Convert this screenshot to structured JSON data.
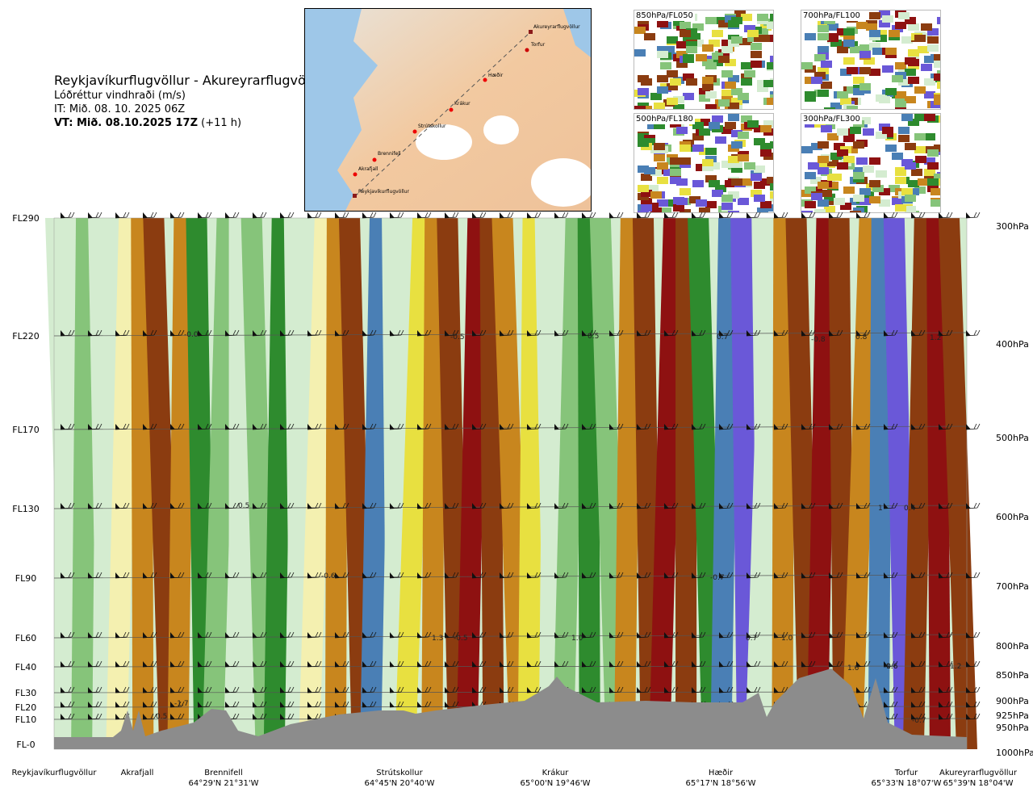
{
  "header": {
    "route": "Reykjavíkurflugvöllur - Akureyrarflugvöllur",
    "parameter": "Lóðréttur vindhraði (m/s)",
    "it": "IT: Mið. 08. 10. 2025 06Z",
    "vt_bold": "VT: Mið. 08.10.2025 17Z",
    "vt_rest": " (+11 h)"
  },
  "map": {
    "points": [
      "Akureyrarflugvöllur",
      "Torfur",
      "Hæðir",
      "Krákur",
      "Strútskollur",
      "Brennifell",
      "Akrafjall",
      "Reykjavíkurflugvöllur"
    ]
  },
  "mini_maps": [
    {
      "label": "850hPa/FL050"
    },
    {
      "label": "700hPa/FL100"
    },
    {
      "label": "500hPa/FL180"
    },
    {
      "label": "300hPa/FL300"
    }
  ],
  "colors": {
    "strong_down": "#8e1111",
    "down": "#8b3c10",
    "weak_down": "#c8861e",
    "neutral_warm": "#e8e040",
    "neutral": "#f4f0b0",
    "pale": "#d4ecd0",
    "weak_up": "#86c47a",
    "up": "#2e8b2e",
    "strong_up": "#4a7fb5",
    "very_strong_up": "#6a58d8",
    "terrain": "#8c8c8c"
  },
  "chart_data": {
    "type": "heatmap",
    "title": "Lóðréttur vindhraði (m/s)",
    "y_left_ticks": [
      "FL290",
      "FL220",
      "FL170",
      "FL130",
      "FL90",
      "FL60",
      "FL40",
      "FL30",
      "FL20",
      "FL10",
      "FL-0"
    ],
    "y_right_ticks": [
      "300hPa",
      "400hPa",
      "500hPa",
      "600hPa",
      "700hPa",
      "800hPa",
      "850hPa",
      "900hPa",
      "925hPa",
      "950hPa",
      "1000hPa"
    ],
    "x_stations": [
      {
        "name": "Reykjavíkurflugvöllur",
        "coord": ""
      },
      {
        "name": "Akrafjall",
        "coord": ""
      },
      {
        "name": "Brennifell",
        "coord": "64°29'N 21°31'W"
      },
      {
        "name": "Strútskollur",
        "coord": "64°45'N 20°40'W"
      },
      {
        "name": "Krákur",
        "coord": "65°00'N 19°46'W"
      },
      {
        "name": "Hæðir",
        "coord": "65°17'N 18°56'W"
      },
      {
        "name": "Torfur",
        "coord": "65°33'N 18°07'W"
      },
      {
        "name": "Akureyrarflugvöllur",
        "coord": "65°39'N 18°04'W"
      }
    ],
    "value_labels": [
      "-0.0",
      "-0.5",
      "0.5",
      "0.7",
      "-0.8",
      "0.8",
      "1.2",
      "0.5",
      "-0.6",
      "-0.7",
      "1.3",
      "-0.5",
      "1.0",
      "0.7",
      "1.0",
      "1.6",
      "1.6",
      "1.2",
      "-1.7",
      "0.5",
      "-0.7",
      "-0.6",
      "0.4",
      "1"
    ]
  }
}
